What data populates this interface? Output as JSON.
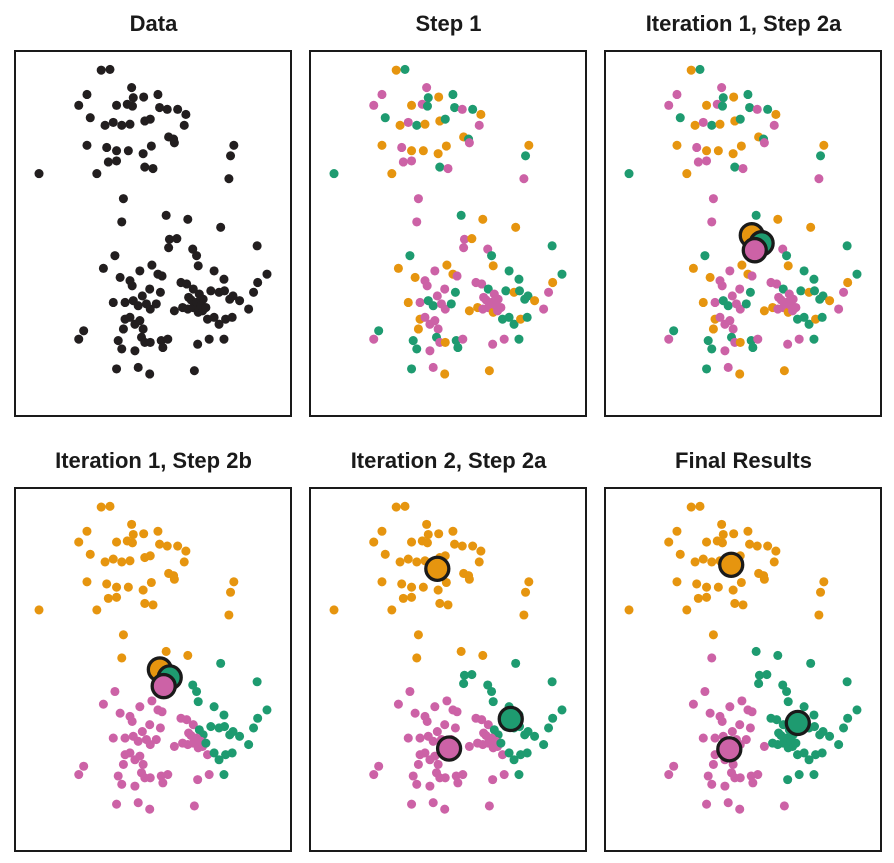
{
  "chart_data": {
    "type": "scatter",
    "description": "K-means clustering algorithm progress shown in six scatter-plot panels: raw data, random initial assignment, centroid computation, reassignment, recomputed centroids, and final clustering.",
    "layout": {
      "grid": "2 rows x 3 columns",
      "axes": "none (frame only)",
      "legend": "none"
    },
    "colors": {
      "orange": "#E6950F",
      "green": "#1E9B70",
      "magenta": "#CC62A6",
      "black": "#221E1F",
      "centroid_stroke": "#1a1a1a"
    },
    "points": [
      [
        31.1,
        5.0
      ],
      [
        34.3,
        4.8
      ],
      [
        42.2,
        9.8
      ],
      [
        42.8,
        12.6
      ],
      [
        25.9,
        11.7
      ],
      [
        22.9,
        14.7
      ],
      [
        36.7,
        14.7
      ],
      [
        40.6,
        14.4
      ],
      [
        42.5,
        14.9
      ],
      [
        46.6,
        12.4
      ],
      [
        51.8,
        11.7
      ],
      [
        52.4,
        15.3
      ],
      [
        55.2,
        15.8
      ],
      [
        59.0,
        15.8
      ],
      [
        62.0,
        17.2
      ],
      [
        27.1,
        18.1
      ],
      [
        32.5,
        20.2
      ],
      [
        35.5,
        19.4
      ],
      [
        38.6,
        20.2
      ],
      [
        41.6,
        19.9
      ],
      [
        47.0,
        19.0
      ],
      [
        49.0,
        18.5
      ],
      [
        61.4,
        20.2
      ],
      [
        55.7,
        23.4
      ],
      [
        57.5,
        24.0
      ],
      [
        57.8,
        25.0
      ],
      [
        25.9,
        25.7
      ],
      [
        33.1,
        26.3
      ],
      [
        36.7,
        27.2
      ],
      [
        41.0,
        27.2
      ],
      [
        46.4,
        28.0
      ],
      [
        49.4,
        25.9
      ],
      [
        79.5,
        25.7
      ],
      [
        78.3,
        28.6
      ],
      [
        33.7,
        30.3
      ],
      [
        36.7,
        30.0
      ],
      [
        47.0,
        31.7
      ],
      [
        50.0,
        32.1
      ],
      [
        8.4,
        33.5
      ],
      [
        29.5,
        33.5
      ],
      [
        77.7,
        34.9
      ],
      [
        39.2,
        40.4
      ],
      [
        38.6,
        46.8
      ],
      [
        54.8,
        45.0
      ],
      [
        62.7,
        46.1
      ],
      [
        74.7,
        48.3
      ],
      [
        56.0,
        51.6
      ],
      [
        58.7,
        51.4
      ],
      [
        55.7,
        53.9
      ],
      [
        64.5,
        54.3
      ],
      [
        65.9,
        56.1
      ],
      [
        88.0,
        53.4
      ],
      [
        36.1,
        56.1
      ],
      [
        66.5,
        58.9
      ],
      [
        31.9,
        59.6
      ],
      [
        45.2,
        60.3
      ],
      [
        49.6,
        58.7
      ],
      [
        51.8,
        61.2
      ],
      [
        53.3,
        61.7
      ],
      [
        72.3,
        60.3
      ],
      [
        75.9,
        62.6
      ],
      [
        91.6,
        61.2
      ],
      [
        38.0,
        62.1
      ],
      [
        88.2,
        63.5
      ],
      [
        41.6,
        63.0
      ],
      [
        42.4,
        64.4
      ],
      [
        48.8,
        65.3
      ],
      [
        52.7,
        66.2
      ],
      [
        60.2,
        63.5
      ],
      [
        62.3,
        63.9
      ],
      [
        64.7,
        65.3
      ],
      [
        66.9,
        66.7
      ],
      [
        68.3,
        68.1
      ],
      [
        71.1,
        65.8
      ],
      [
        74.1,
        66.2
      ],
      [
        76.1,
        65.8
      ],
      [
        78.0,
        68.1
      ],
      [
        79.2,
        67.2
      ],
      [
        81.6,
        68.5
      ],
      [
        84.9,
        70.8
      ],
      [
        86.7,
        66.2
      ],
      [
        35.5,
        69.0
      ],
      [
        39.8,
        69.0
      ],
      [
        42.8,
        68.5
      ],
      [
        44.6,
        69.9
      ],
      [
        47.6,
        69.4
      ],
      [
        49.0,
        70.8
      ],
      [
        51.2,
        69.4
      ],
      [
        57.8,
        71.3
      ],
      [
        60.8,
        70.4
      ],
      [
        62.7,
        70.8
      ],
      [
        64.7,
        70.4
      ],
      [
        66.5,
        71.7
      ],
      [
        68.1,
        71.3
      ],
      [
        69.9,
        73.6
      ],
      [
        72.3,
        73.1
      ],
      [
        74.1,
        75.0
      ],
      [
        76.5,
        73.6
      ],
      [
        78.9,
        73.1
      ],
      [
        39.8,
        73.6
      ],
      [
        41.6,
        73.1
      ],
      [
        43.4,
        75.0
      ],
      [
        45.2,
        74.0
      ],
      [
        46.4,
        76.3
      ],
      [
        39.2,
        76.3
      ],
      [
        45.8,
        78.6
      ],
      [
        24.7,
        76.8
      ],
      [
        22.9,
        79.1
      ],
      [
        37.3,
        79.5
      ],
      [
        47.0,
        80.0
      ],
      [
        49.0,
        80.0
      ],
      [
        53.0,
        79.5
      ],
      [
        55.4,
        79.1
      ],
      [
        66.3,
        80.5
      ],
      [
        70.5,
        79.1
      ],
      [
        75.9,
        79.1
      ],
      [
        38.6,
        81.8
      ],
      [
        43.4,
        82.3
      ],
      [
        53.6,
        81.4
      ],
      [
        36.7,
        87.3
      ],
      [
        44.6,
        86.9
      ],
      [
        48.8,
        88.7
      ],
      [
        65.1,
        87.8
      ],
      [
        63.9,
        68.3
      ],
      [
        65.9,
        69.0
      ],
      [
        67.5,
        69.9
      ],
      [
        69.3,
        70.4
      ],
      [
        63.0,
        67.6
      ],
      [
        46.1,
        67.2
      ]
    ],
    "assignment_sets": {
      "random": [
        "o",
        "g",
        "m",
        "g",
        "m",
        "m",
        "o",
        "m",
        "g",
        "o",
        "g",
        "g",
        "m",
        "g",
        "o",
        "g",
        "o",
        "m",
        "g",
        "o",
        "o",
        "g",
        "m",
        "o",
        "g",
        "m",
        "o",
        "m",
        "o",
        "o",
        "o",
        "o",
        "o",
        "g",
        "m",
        "m",
        "g",
        "m",
        "g",
        "o",
        "m",
        "m",
        "m",
        "g",
        "o",
        "o",
        "m",
        "o",
        "m",
        "m",
        "g",
        "g",
        "g",
        "o",
        "o",
        "m",
        "o",
        "o",
        "m",
        "g",
        "g",
        "g",
        "o",
        "o",
        "m",
        "m",
        "m",
        "g",
        "m",
        "m",
        "g",
        "m",
        "m",
        "g",
        "o",
        "g",
        "g",
        "g",
        "o",
        "m",
        "m",
        "o",
        "m",
        "g",
        "g",
        "m",
        "m",
        "g",
        "o",
        "o",
        "m",
        "m",
        "o",
        "m",
        "g",
        "g",
        "g",
        "o",
        "g",
        "o",
        "m",
        "m",
        "m",
        "m",
        "o",
        "g",
        "g",
        "m",
        "g",
        "m",
        "o",
        "g",
        "m",
        "m",
        "m",
        "g",
        "g",
        "m",
        "g",
        "g",
        "m",
        "o",
        "o",
        "m",
        "m",
        "m",
        "m",
        "m",
        "m"
      ],
      "iter1": [
        "o",
        "o",
        "o",
        "o",
        "o",
        "o",
        "o",
        "o",
        "o",
        "o",
        "o",
        "o",
        "o",
        "o",
        "o",
        "o",
        "o",
        "o",
        "o",
        "o",
        "o",
        "o",
        "o",
        "o",
        "o",
        "o",
        "o",
        "o",
        "o",
        "o",
        "o",
        "o",
        "o",
        "o",
        "o",
        "o",
        "o",
        "o",
        "o",
        "o",
        "o",
        "o",
        "o",
        "o",
        "o",
        "g",
        "g",
        "g",
        "g",
        "g",
        "g",
        "g",
        "m",
        "g",
        "m",
        "m",
        "m",
        "m",
        "m",
        "g",
        "g",
        "g",
        "m",
        "g",
        "m",
        "m",
        "m",
        "m",
        "m",
        "m",
        "m",
        "g",
        "g",
        "g",
        "g",
        "g",
        "g",
        "g",
        "g",
        "g",
        "g",
        "m",
        "m",
        "m",
        "m",
        "m",
        "m",
        "m",
        "m",
        "m",
        "m",
        "m",
        "m",
        "m",
        "m",
        "g",
        "g",
        "g",
        "g",
        "m",
        "m",
        "m",
        "m",
        "m",
        "m",
        "m",
        "m",
        "m",
        "m",
        "m",
        "m",
        "m",
        "m",
        "m",
        "m",
        "g",
        "m",
        "m",
        "m",
        "m",
        "m",
        "m",
        "m",
        "m",
        "m",
        "m",
        "g",
        "m",
        "m"
      ],
      "final": [
        "o",
        "o",
        "o",
        "o",
        "o",
        "o",
        "o",
        "o",
        "o",
        "o",
        "o",
        "o",
        "o",
        "o",
        "o",
        "o",
        "o",
        "o",
        "o",
        "o",
        "o",
        "o",
        "o",
        "o",
        "o",
        "o",
        "o",
        "o",
        "o",
        "o",
        "o",
        "o",
        "o",
        "o",
        "o",
        "o",
        "o",
        "o",
        "o",
        "o",
        "o",
        "o",
        "m",
        "g",
        "g",
        "g",
        "g",
        "g",
        "g",
        "g",
        "g",
        "g",
        "m",
        "g",
        "m",
        "m",
        "m",
        "m",
        "m",
        "g",
        "g",
        "g",
        "m",
        "g",
        "m",
        "m",
        "m",
        "m",
        "g",
        "g",
        "g",
        "g",
        "g",
        "g",
        "g",
        "g",
        "g",
        "g",
        "g",
        "g",
        "g",
        "m",
        "m",
        "m",
        "m",
        "m",
        "m",
        "m",
        "m",
        "g",
        "g",
        "g",
        "g",
        "g",
        "g",
        "g",
        "g",
        "g",
        "g",
        "m",
        "m",
        "m",
        "m",
        "m",
        "m",
        "m",
        "m",
        "m",
        "m",
        "m",
        "m",
        "m",
        "m",
        "g",
        "g",
        "g",
        "m",
        "m",
        "m",
        "m",
        "m",
        "m",
        "m",
        "g",
        "g",
        "g",
        "g",
        "g",
        "m"
      ]
    },
    "panels": [
      {
        "title": "Data",
        "assignments": null,
        "centroids": []
      },
      {
        "title": "Step 1",
        "assignments": "random",
        "centroids": []
      },
      {
        "title": "Iteration 1, Step 2a",
        "assignments": "random",
        "centroids": [
          {
            "color": "orange",
            "x": 53.2,
            "y": 50.5
          },
          {
            "color": "green",
            "x": 56.8,
            "y": 52.7
          },
          {
            "color": "magenta",
            "x": 54.3,
            "y": 54.6
          }
        ]
      },
      {
        "title": "Iteration 1, Step 2b",
        "assignments": "iter1",
        "centroids": [
          {
            "color": "orange",
            "x": 52.5,
            "y": 50.0
          },
          {
            "color": "green",
            "x": 56.1,
            "y": 52.2
          },
          {
            "color": "magenta",
            "x": 53.9,
            "y": 54.6
          }
        ]
      },
      {
        "title": "Iteration 2, Step 2a",
        "assignments": "iter1",
        "centroids": [
          {
            "color": "orange",
            "x": 46.1,
            "y": 22.1
          },
          {
            "color": "green",
            "x": 72.9,
            "y": 63.7
          },
          {
            "color": "magenta",
            "x": 50.4,
            "y": 71.9
          }
        ]
      },
      {
        "title": "Final Results",
        "assignments": "final",
        "centroids": [
          {
            "color": "orange",
            "x": 45.7,
            "y": 21.0
          },
          {
            "color": "green",
            "x": 70.0,
            "y": 64.8
          },
          {
            "color": "magenta",
            "x": 45.0,
            "y": 72.1
          }
        ]
      }
    ],
    "marker": {
      "point_radius_px": 4.6,
      "centroid_radius_px": 12,
      "centroid_stroke_px": 3.2
    }
  }
}
